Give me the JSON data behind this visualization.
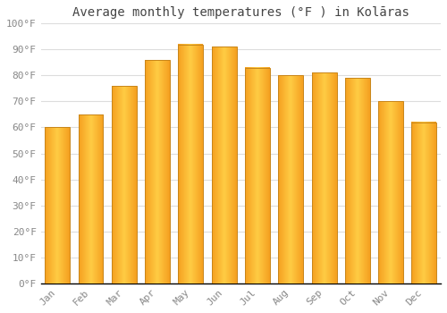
{
  "title": "Average monthly temperatures (°F ) in Kolāras",
  "months": [
    "Jan",
    "Feb",
    "Mar",
    "Apr",
    "May",
    "Jun",
    "Jul",
    "Aug",
    "Sep",
    "Oct",
    "Nov",
    "Dec"
  ],
  "values": [
    60,
    65,
    76,
    86,
    92,
    91,
    83,
    80,
    81,
    79,
    70,
    62
  ],
  "bar_color_center": "#FFCC44",
  "bar_color_edge": "#F5A020",
  "background_color": "#FFFFFF",
  "grid_color": "#DDDDDD",
  "ylim": [
    0,
    100
  ],
  "yticks": [
    0,
    10,
    20,
    30,
    40,
    50,
    60,
    70,
    80,
    90,
    100
  ],
  "ytick_labels": [
    "0°F",
    "10°F",
    "20°F",
    "30°F",
    "40°F",
    "50°F",
    "60°F",
    "70°F",
    "80°F",
    "90°F",
    "100°F"
  ],
  "title_fontsize": 10,
  "tick_fontsize": 8,
  "title_color": "#444444",
  "tick_color": "#888888",
  "bar_width": 0.75
}
